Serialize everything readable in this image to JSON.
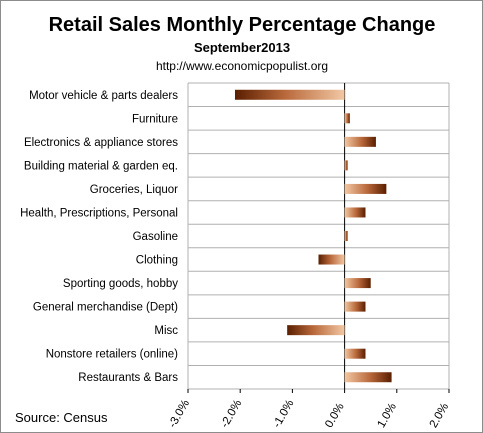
{
  "chart_data": {
    "type": "bar",
    "orientation": "horizontal",
    "title": "Retail Sales Monthly  Percentage Change",
    "subtitle": "September2013",
    "url": "http://www.economicpopulist.org",
    "source": "Source:  Census",
    "categories": [
      "Motor vehicle & parts dealers",
      "Furniture",
      "Electronics & appliance stores",
      "Building material & garden eq.",
      "Groceries, Liquor",
      "Health, Prescriptions, Personal",
      "Gasoline",
      "Clothing",
      "Sporting goods, hobby",
      "General merchandise (Dept)",
      "Misc",
      "Nonstore retailers (online)",
      "Restaurants & Bars"
    ],
    "values": [
      -2.1,
      0.1,
      0.6,
      0.0,
      0.8,
      0.4,
      0.0,
      -0.5,
      0.5,
      0.4,
      -1.1,
      0.4,
      0.9
    ],
    "xlim": [
      -3.0,
      2.0
    ],
    "xticks": [
      "-3.0%",
      "-2.0%",
      "-1.0%",
      "0.0%",
      "1.0%",
      "2.0%"
    ],
    "xtick_values": [
      -3,
      -2,
      -1,
      0,
      1,
      2
    ],
    "grid": true,
    "legend": "none",
    "colors": {
      "bar_dark": "#5a1e00",
      "bar_mid": "#b8683a",
      "bar_light": "#f2c8a4",
      "grid": "#b0b0b0",
      "axis": "#000000"
    }
  }
}
